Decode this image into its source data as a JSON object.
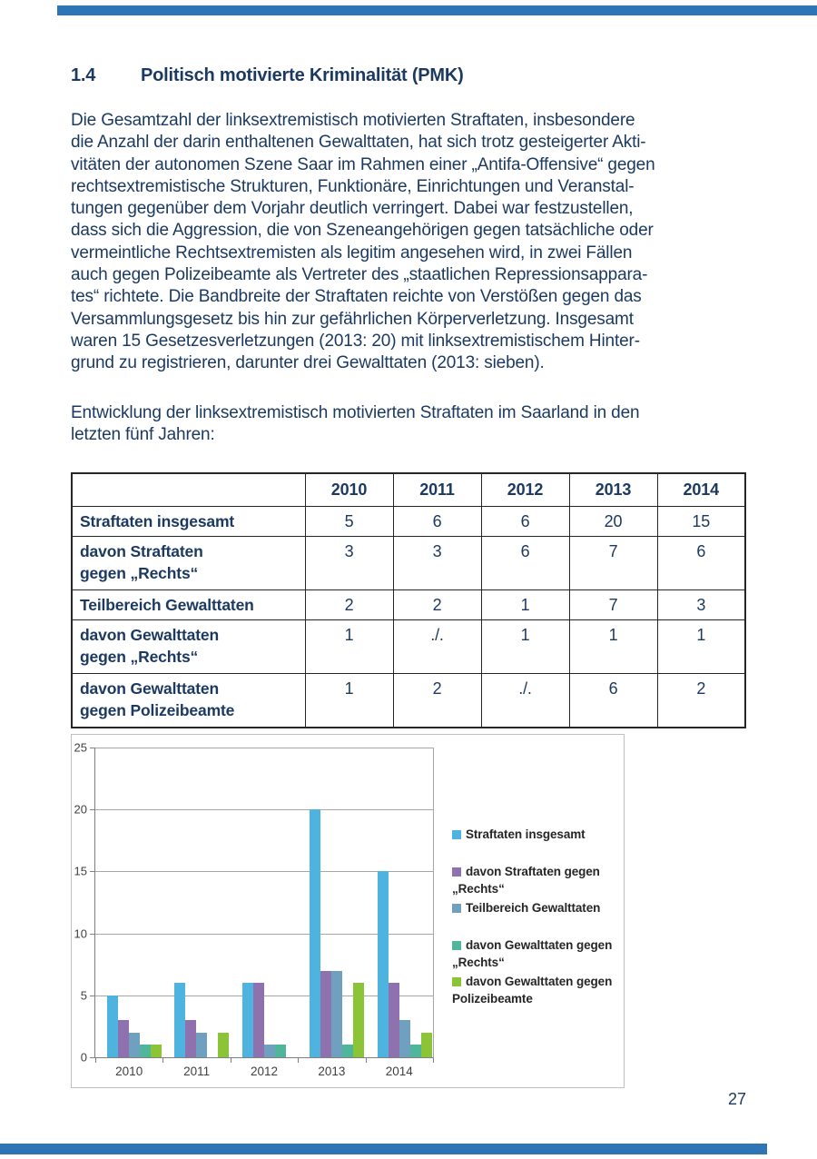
{
  "colors": {
    "accent_bar": "#2E75B6",
    "text_navy": "#1c3a61",
    "table_border": "#262626"
  },
  "page": {
    "number": "27"
  },
  "heading": {
    "number": "1.4",
    "title": "Politisch motivierte Kriminalität (PMK)"
  },
  "paragraphs": {
    "p1": "Die Gesamtzahl der linksextremistisch motivierten Straftaten, insbesondere\ndie Anzahl der darin enthaltenen Gewalttaten, hat sich trotz gesteigerter Akti-\nvitäten der autonomen Szene Saar im Rahmen einer „Antifa-Offensive“ gegen\nrechtsextremistische Strukturen, Funktionäre, Einrichtungen und Veranstal-\ntungen gegenüber dem Vorjahr deutlich verringert. Dabei war festzustellen,\ndass sich die Aggression, die von Szeneangehörigen gegen tatsächliche oder\nvermeintliche Rechtsextremisten als legitim angesehen wird, in zwei Fällen\nauch gegen Polizeibeamte als Vertreter des „staatlichen Repressionsappara-\ntes“ richtete. Die Bandbreite der Straftaten reichte von Verstößen gegen das\nVersammlungsgesetz bis hin zur gefährlichen Körperverletzung. Insgesamt\nwaren 15 Gesetzesverletzungen (2013: 20) mit linksextremistischem Hinter-\ngrund zu registrieren, darunter drei Gewalttaten (2013: sieben).",
    "p2": "Entwicklung der linksextremistisch motivierten Straftaten im Saarland in den\nletzten fünf Jahren:"
  },
  "table": {
    "corner": "",
    "col_headers": [
      "2010",
      "2011",
      "2012",
      "2013",
      "2014"
    ],
    "rows": [
      {
        "label": "Straftaten insgesamt",
        "two_line": false,
        "values": [
          "5",
          "6",
          "6",
          "20",
          "15"
        ]
      },
      {
        "label": "davon Straftaten\ngegen „Rechts“",
        "two_line": true,
        "values": [
          "3",
          "3",
          "6",
          "7",
          "6"
        ]
      },
      {
        "label": "Teilbereich Gewalttaten",
        "two_line": false,
        "values": [
          "2",
          "2",
          "1",
          "7",
          "3"
        ]
      },
      {
        "label": "davon Gewalttaten\ngegen „Rechts“",
        "two_line": true,
        "values": [
          "1",
          "./.",
          "1",
          "1",
          "1"
        ]
      },
      {
        "label": "davon Gewalttaten\ngegen Polizeibeamte",
        "two_line": true,
        "values": [
          "1",
          "2",
          "./.",
          "6",
          "2"
        ]
      }
    ]
  },
  "chart_data": {
    "type": "bar",
    "title": "",
    "xlabel": "",
    "ylabel": "",
    "categories": [
      "2010",
      "2011",
      "2012",
      "2013",
      "2014"
    ],
    "series": [
      {
        "name": "Straftaten insgesamt",
        "color": "#4FB3DF",
        "values": [
          5,
          6,
          6,
          20,
          15
        ]
      },
      {
        "name": "davon Straftaten gegen „Rechts“",
        "color": "#9071B0",
        "values": [
          3,
          3,
          6,
          7,
          6
        ]
      },
      {
        "name": "Teilbereich Gewalttaten",
        "color": "#6FA0C0",
        "values": [
          2,
          2,
          1,
          7,
          3
        ]
      },
      {
        "name": "davon Gewalttaten gegen „Rechts“",
        "color": "#4FB69C",
        "values": [
          1,
          0,
          1,
          1,
          1
        ]
      },
      {
        "name": "davon Gewalttaten gegen Polizeibeamte",
        "color": "#8BC436",
        "values": [
          1,
          2,
          0,
          6,
          2
        ]
      }
    ],
    "ylim": [
      0,
      25
    ],
    "yticks": [
      0,
      5,
      10,
      15,
      20,
      25
    ],
    "grid": true,
    "legend_position": "right",
    "note_zero_shown_as": "./."
  }
}
